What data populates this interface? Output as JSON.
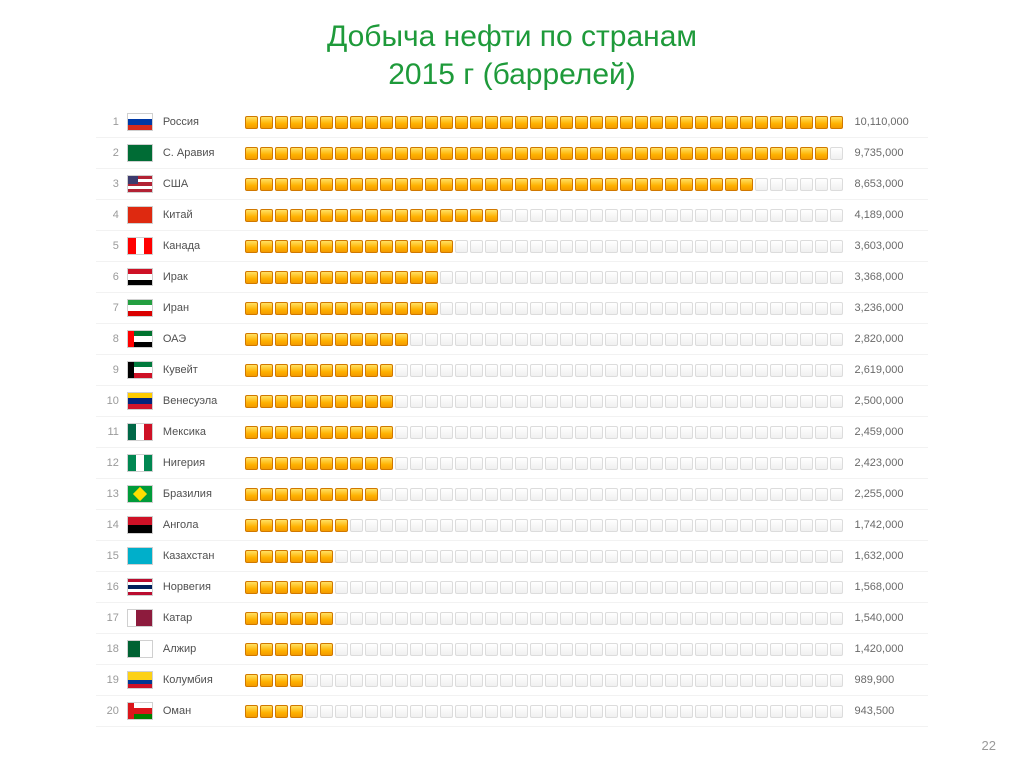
{
  "title_line1": "Добыча нефти по странам",
  "title_line2": "2015 г (баррелей)",
  "page_number": "22",
  "chart": {
    "type": "pictogram-bar",
    "max_slots": 40,
    "icon_fill_color": "#ffb200",
    "icon_border_color": "#d07800",
    "empty_fill_color": "#f5f5f5",
    "empty_border_color": "#dcdcdc",
    "row_border_color": "#f2f2f2",
    "rank_color": "#9a9a9a",
    "text_color": "#505050",
    "value_color": "#6a6a6a",
    "font_size_pt": 11,
    "max_value": 10110000,
    "rows": [
      {
        "rank": "1",
        "country": "Россия",
        "value_raw": 10110000,
        "value": "10,110,000",
        "flag": {
          "dir": "row",
          "stripes": [
            "#ffffff",
            "#0039a6",
            "#d52b1e"
          ]
        }
      },
      {
        "rank": "2",
        "country": "С. Аравия",
        "value_raw": 9735000,
        "value": "9,735,000",
        "flag": {
          "dir": "row",
          "stripes": [
            "#006c35"
          ]
        }
      },
      {
        "rank": "3",
        "country": "США",
        "value_raw": 8653000,
        "value": "8,653,000",
        "flag": {
          "dir": "row",
          "stripes": [
            "#b22234",
            "#ffffff",
            "#b22234",
            "#ffffff",
            "#b22234"
          ],
          "canton": "#3c3b6e"
        }
      },
      {
        "rank": "4",
        "country": "Китай",
        "value_raw": 4189000,
        "value": "4,189,000",
        "flag": {
          "dir": "row",
          "stripes": [
            "#de2910"
          ]
        }
      },
      {
        "rank": "5",
        "country": "Канада",
        "value_raw": 3603000,
        "value": "3,603,000",
        "flag": {
          "dir": "col",
          "stripes": [
            "#ff0000",
            "#ffffff",
            "#ff0000"
          ]
        }
      },
      {
        "rank": "6",
        "country": "Ирак",
        "value_raw": 3368000,
        "value": "3,368,000",
        "flag": {
          "dir": "row",
          "stripes": [
            "#ce1126",
            "#ffffff",
            "#000000"
          ]
        }
      },
      {
        "rank": "7",
        "country": "Иран",
        "value_raw": 3236000,
        "value": "3,236,000",
        "flag": {
          "dir": "row",
          "stripes": [
            "#239f40",
            "#ffffff",
            "#da0000"
          ]
        }
      },
      {
        "rank": "8",
        "country": "ОАЭ",
        "value_raw": 2820000,
        "value": "2,820,000",
        "flag": {
          "dir": "row",
          "stripes": [
            "#00732f",
            "#ffffff",
            "#000000"
          ],
          "left": "#ff0000"
        }
      },
      {
        "rank": "9",
        "country": "Кувейт",
        "value_raw": 2619000,
        "value": "2,619,000",
        "flag": {
          "dir": "row",
          "stripes": [
            "#007a3d",
            "#ffffff",
            "#ce1126"
          ],
          "left": "#000000"
        }
      },
      {
        "rank": "10",
        "country": "Венесуэла",
        "value_raw": 2500000,
        "value": "2,500,000",
        "flag": {
          "dir": "row",
          "stripes": [
            "#ffcc00",
            "#00247d",
            "#cf142b"
          ]
        }
      },
      {
        "rank": "11",
        "country": "Мексика",
        "value_raw": 2459000,
        "value": "2,459,000",
        "flag": {
          "dir": "col",
          "stripes": [
            "#006847",
            "#ffffff",
            "#ce1126"
          ]
        }
      },
      {
        "rank": "12",
        "country": "Нигерия",
        "value_raw": 2423000,
        "value": "2,423,000",
        "flag": {
          "dir": "col",
          "stripes": [
            "#008751",
            "#ffffff",
            "#008751"
          ]
        }
      },
      {
        "rank": "13",
        "country": "Бразилия",
        "value_raw": 2255000,
        "value": "2,255,000",
        "flag": {
          "dir": "row",
          "stripes": [
            "#009b3a"
          ],
          "center": "#fedf00"
        }
      },
      {
        "rank": "14",
        "country": "Ангола",
        "value_raw": 1742000,
        "value": "1,742,000",
        "flag": {
          "dir": "row",
          "stripes": [
            "#ce1126",
            "#000000"
          ]
        }
      },
      {
        "rank": "15",
        "country": "Казахстан",
        "value_raw": 1632000,
        "value": "1,632,000",
        "flag": {
          "dir": "row",
          "stripes": [
            "#00afca"
          ]
        }
      },
      {
        "rank": "16",
        "country": "Норвегия",
        "value_raw": 1568000,
        "value": "1,568,000",
        "flag": {
          "dir": "row",
          "stripes": [
            "#ba0c2f",
            "#ffffff",
            "#00205b",
            "#ffffff",
            "#ba0c2f"
          ]
        }
      },
      {
        "rank": "17",
        "country": "Катар",
        "value_raw": 1540000,
        "value": "1,540,000",
        "flag": {
          "dir": "col",
          "stripes": [
            "#ffffff",
            "#8d1b3d",
            "#8d1b3d"
          ]
        }
      },
      {
        "rank": "18",
        "country": "Алжир",
        "value_raw": 1420000,
        "value": "1,420,000",
        "flag": {
          "dir": "col",
          "stripes": [
            "#006233",
            "#ffffff"
          ]
        }
      },
      {
        "rank": "19",
        "country": "Колумбия",
        "value_raw": 989900,
        "value": "989,900",
        "flag": {
          "dir": "row",
          "stripes": [
            "#fcd116",
            "#fcd116",
            "#003893",
            "#ce1126"
          ]
        }
      },
      {
        "rank": "20",
        "country": "Оман",
        "value_raw": 943500,
        "value": "943,500",
        "flag": {
          "dir": "row",
          "stripes": [
            "#ffffff",
            "#db161b",
            "#008000"
          ],
          "left": "#db161b"
        }
      }
    ]
  }
}
